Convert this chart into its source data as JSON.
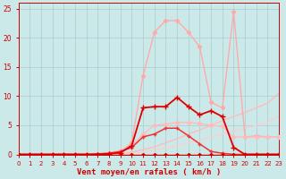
{
  "xlabel": "Vent moyen/en rafales ( km/h )",
  "xlim": [
    0,
    23
  ],
  "ylim": [
    0,
    26
  ],
  "yticks": [
    0,
    5,
    10,
    15,
    20,
    25
  ],
  "xticks": [
    0,
    1,
    2,
    3,
    4,
    5,
    6,
    7,
    8,
    9,
    10,
    11,
    12,
    13,
    14,
    15,
    16,
    17,
    18,
    19,
    20,
    21,
    22,
    23
  ],
  "bg_color": "#cce9ea",
  "grid_color": "#aacccc",
  "lines": [
    {
      "x": [
        0,
        1,
        2,
        3,
        4,
        5,
        6,
        7,
        8,
        9,
        10,
        11,
        12,
        13,
        14,
        15,
        16,
        17,
        18,
        19,
        20,
        21,
        22,
        23
      ],
      "y": [
        0,
        0,
        0,
        0,
        0,
        0,
        0,
        0,
        0.3,
        0.5,
        2.0,
        13.5,
        21.0,
        23.0,
        23.0,
        21.0,
        18.5,
        9.0,
        8.0,
        24.5,
        3.0,
        3.2,
        3.0,
        3.0
      ],
      "color": "#ffaaaa",
      "lw": 1.0,
      "marker": "D",
      "ms": 2.2,
      "zorder": 3
    },
    {
      "x": [
        0,
        1,
        2,
        3,
        4,
        5,
        6,
        7,
        8,
        9,
        10,
        11,
        12,
        13,
        14,
        15,
        16,
        17,
        18,
        19,
        20,
        21,
        22,
        23
      ],
      "y": [
        0,
        0,
        0,
        0,
        0,
        0,
        0,
        0,
        0.1,
        0.3,
        1.5,
        8.0,
        8.2,
        8.2,
        9.8,
        8.2,
        6.8,
        7.5,
        6.5,
        1.2,
        0,
        0,
        0,
        0
      ],
      "color": "#dd0000",
      "lw": 1.3,
      "marker": "+",
      "ms": 4.0,
      "zorder": 5
    },
    {
      "x": [
        0,
        1,
        2,
        3,
        4,
        5,
        6,
        7,
        8,
        9,
        10,
        11,
        12,
        13,
        14,
        15,
        16,
        17,
        18,
        19,
        20,
        21,
        22,
        23
      ],
      "y": [
        0,
        0,
        0,
        0,
        0,
        0,
        0,
        0.1,
        0.2,
        0.5,
        1.2,
        3.0,
        3.5,
        4.5,
        4.5,
        3.2,
        1.8,
        0.5,
        0.2,
        0,
        0,
        0,
        0,
        0
      ],
      "color": "#ee3333",
      "lw": 1.1,
      "marker": "+",
      "ms": 3.5,
      "zorder": 4
    },
    {
      "x": [
        0,
        1,
        2,
        3,
        4,
        5,
        6,
        7,
        8,
        9,
        10,
        11,
        12,
        13,
        14,
        15,
        16,
        17,
        18,
        19,
        20,
        21,
        22,
        23
      ],
      "y": [
        0,
        0,
        0,
        0,
        0,
        0,
        0,
        0,
        0.1,
        0.2,
        0.4,
        0.8,
        1.3,
        2.0,
        2.7,
        3.5,
        4.2,
        5.0,
        5.8,
        6.5,
        7.2,
        8.0,
        8.8,
        10.5
      ],
      "color": "#ffbbbb",
      "lw": 1.0,
      "marker": null,
      "ms": 0,
      "zorder": 2
    },
    {
      "x": [
        0,
        1,
        2,
        3,
        4,
        5,
        6,
        7,
        8,
        9,
        10,
        11,
        12,
        13,
        14,
        15,
        16,
        17,
        18,
        19,
        20,
        21,
        22,
        23
      ],
      "y": [
        0,
        0,
        0,
        0,
        0,
        0,
        0,
        0,
        0.05,
        0.1,
        0.2,
        0.4,
        0.7,
        1.1,
        1.5,
        2.0,
        2.5,
        3.0,
        3.5,
        4.0,
        4.5,
        5.0,
        5.5,
        6.5
      ],
      "color": "#ffcccc",
      "lw": 0.9,
      "marker": null,
      "ms": 0,
      "zorder": 2
    },
    {
      "x": [
        0,
        1,
        2,
        3,
        4,
        5,
        6,
        7,
        8,
        9,
        10,
        11,
        12,
        13,
        14,
        15,
        16,
        17,
        18,
        19,
        20,
        21,
        22,
        23
      ],
      "y": [
        0,
        0,
        0,
        0,
        0,
        0,
        0,
        0,
        0,
        0,
        0,
        0,
        0,
        0,
        0,
        0,
        0,
        0,
        0,
        0,
        0,
        0,
        0,
        0
      ],
      "color": "#cc0000",
      "lw": 1.0,
      "marker": "D",
      "ms": 2.0,
      "zorder": 6
    },
    {
      "x": [
        0,
        1,
        2,
        3,
        4,
        5,
        6,
        7,
        8,
        9,
        10,
        11,
        12,
        13,
        14,
        15,
        16,
        17,
        18,
        19,
        20,
        21,
        22,
        23
      ],
      "y": [
        0,
        0,
        0,
        0,
        0,
        0,
        0,
        0.1,
        0.3,
        0.7,
        1.5,
        3.5,
        5.0,
        5.2,
        5.5,
        5.5,
        5.3,
        5.0,
        4.8,
        3.0,
        3.0,
        3.0,
        3.0,
        3.0
      ],
      "color": "#ffbbbb",
      "lw": 1.0,
      "marker": "D",
      "ms": 2.2,
      "zorder": 3
    }
  ],
  "tick_label_size": 5.5,
  "xlabel_size": 6.5,
  "label_color": "#cc0000"
}
